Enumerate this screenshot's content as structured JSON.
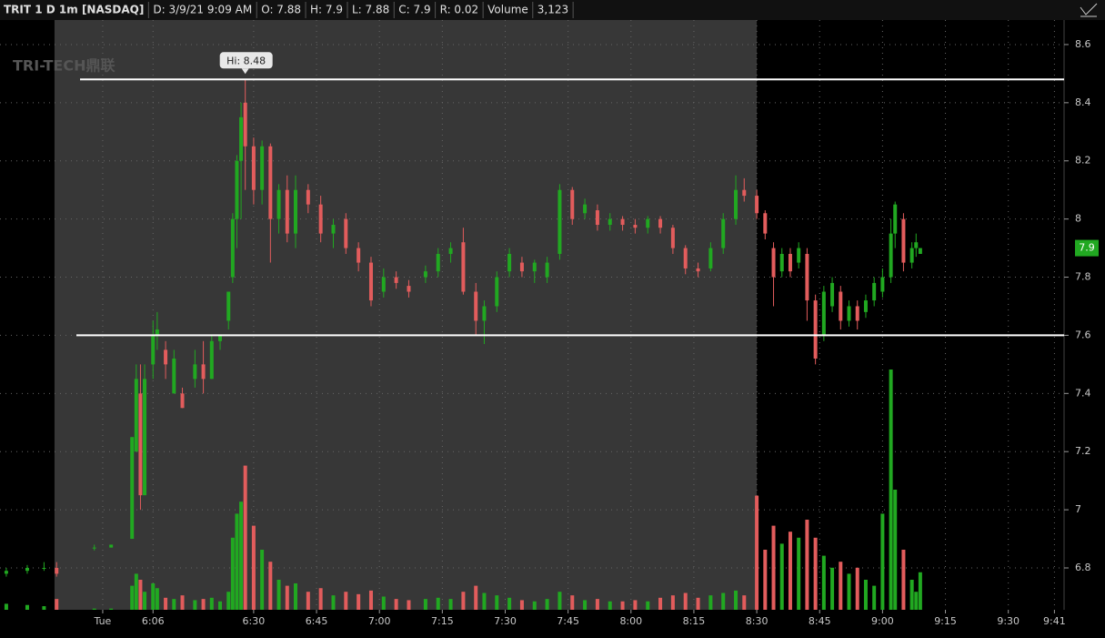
{
  "chart_data": {
    "type": "candlestick",
    "header": [
      "TRIT 1 D 1m [NASDAQ]",
      "D: 3/9/21 9:09 AM",
      "O: 7.88",
      "H: 7.9",
      "L: 7.88",
      "C: 7.9",
      "R: 0.02",
      "Volume",
      "3,123"
    ],
    "logo": "TRI-TECH鼎联",
    "hi_label": "Hi: 8.48",
    "last_price": 7.9,
    "levels": [
      8.48,
      7.6
    ],
    "up_color": "#21a821",
    "down_color": "#e25c5c",
    "level_color": "#ffffff",
    "xlim": [
      329.5,
      583.3
    ],
    "ylim": [
      6.656,
      8.675
    ],
    "volume_lim": [
      0,
      25000
    ],
    "shade": [
      342.5,
      510
    ],
    "grid": true,
    "xticks": [
      {
        "value": 354,
        "label": "Tue"
      },
      {
        "value": 366,
        "label": "6:06"
      },
      {
        "value": 390,
        "label": "6:30"
      },
      {
        "value": 405,
        "label": "6:45"
      },
      {
        "value": 420,
        "label": "7:00"
      },
      {
        "value": 435,
        "label": "7:15"
      },
      {
        "value": 450,
        "label": "7:30"
      },
      {
        "value": 465,
        "label": "7:45"
      },
      {
        "value": 480,
        "label": "8:00"
      },
      {
        "value": 495,
        "label": "8:15"
      },
      {
        "value": 510,
        "label": "8:30"
      },
      {
        "value": 525,
        "label": "8:45"
      },
      {
        "value": 540,
        "label": "9:00"
      },
      {
        "value": 555,
        "label": "9:15"
      },
      {
        "value": 570,
        "label": "9:30"
      },
      {
        "value": 581,
        "label": "9:41"
      }
    ],
    "yticks": [
      6.8,
      7,
      7.2,
      7.4,
      7.6,
      7.8,
      8,
      8.2,
      8.4,
      8.6
    ],
    "candles": [
      [
        331,
        6.78,
        6.8,
        6.77,
        6.79,
        500
      ],
      [
        336,
        6.79,
        6.81,
        6.78,
        6.8,
        400
      ],
      [
        340,
        6.8,
        6.82,
        6.79,
        6.8,
        300
      ],
      [
        343,
        6.8,
        6.82,
        6.77,
        6.78,
        900
      ],
      [
        352,
        6.87,
        6.88,
        6.86,
        6.87,
        100
      ],
      [
        356,
        6.87,
        6.88,
        6.87,
        6.88,
        100
      ],
      [
        361,
        6.9,
        7.25,
        6.9,
        7.25,
        2000
      ],
      [
        362,
        7.2,
        7.5,
        7.2,
        7.45,
        3000
      ],
      [
        363,
        7.4,
        7.5,
        7.0,
        7.05,
        2500
      ],
      [
        364,
        7.05,
        7.5,
        7.05,
        7.45,
        1500
      ],
      [
        366,
        7.5,
        7.65,
        7.45,
        7.6,
        2200
      ],
      [
        367,
        7.6,
        7.68,
        7.55,
        7.62,
        1800
      ],
      [
        369,
        7.55,
        7.58,
        7.45,
        7.5,
        1000
      ],
      [
        371,
        7.4,
        7.55,
        7.4,
        7.52,
        900
      ],
      [
        373,
        7.4,
        7.42,
        7.35,
        7.35,
        1200
      ],
      [
        376,
        7.45,
        7.55,
        7.42,
        7.5,
        800
      ],
      [
        378,
        7.5,
        7.58,
        7.4,
        7.45,
        900
      ],
      [
        380,
        7.45,
        7.6,
        7.45,
        7.58,
        1000
      ],
      [
        382,
        7.58,
        7.6,
        7.55,
        7.6,
        700
      ],
      [
        384,
        7.65,
        7.75,
        7.62,
        7.75,
        1500
      ],
      [
        385,
        7.8,
        8.02,
        7.78,
        8.0,
        6000
      ],
      [
        386,
        8.0,
        8.22,
        7.9,
        8.2,
        8000
      ],
      [
        387,
        8.2,
        8.4,
        8.0,
        8.35,
        9000
      ],
      [
        388,
        8.4,
        8.48,
        8.1,
        8.25,
        12000
      ],
      [
        390,
        8.25,
        8.28,
        8.05,
        8.1,
        7000
      ],
      [
        392,
        8.1,
        8.27,
        8.05,
        8.25,
        5000
      ],
      [
        394,
        8.25,
        8.26,
        7.85,
        8.0,
        4000
      ],
      [
        396,
        8.0,
        8.12,
        7.95,
        8.1,
        2500
      ],
      [
        398,
        8.1,
        8.15,
        7.92,
        7.95,
        2000
      ],
      [
        400,
        7.95,
        8.15,
        7.9,
        8.1,
        2200
      ],
      [
        403,
        8.1,
        8.12,
        8.02,
        8.05,
        1500
      ],
      [
        406,
        8.05,
        8.08,
        7.92,
        7.95,
        1800
      ],
      [
        409,
        7.95,
        8.0,
        7.9,
        7.98,
        1200
      ],
      [
        412,
        8.0,
        8.02,
        7.88,
        7.9,
        1500
      ],
      [
        415,
        7.9,
        7.92,
        7.82,
        7.85,
        1300
      ],
      [
        418,
        7.85,
        7.87,
        7.7,
        7.72,
        1600
      ],
      [
        421,
        7.75,
        7.83,
        7.73,
        7.8,
        1100
      ],
      [
        424,
        7.8,
        7.82,
        7.76,
        7.78,
        900
      ],
      [
        427,
        7.77,
        7.79,
        7.73,
        7.75,
        800
      ],
      [
        431,
        7.8,
        7.84,
        7.78,
        7.82,
        900
      ],
      [
        434,
        7.82,
        7.9,
        7.8,
        7.88,
        1000
      ],
      [
        437,
        7.88,
        7.92,
        7.85,
        7.9,
        900
      ],
      [
        440,
        7.92,
        7.97,
        7.74,
        7.75,
        1500
      ],
      [
        443,
        7.75,
        7.78,
        7.6,
        7.65,
        2000
      ],
      [
        445,
        7.65,
        7.72,
        7.57,
        7.7,
        1400
      ],
      [
        448,
        7.7,
        7.82,
        7.68,
        7.8,
        1200
      ],
      [
        451,
        7.82,
        7.9,
        7.8,
        7.88,
        1000
      ],
      [
        454,
        7.85,
        7.87,
        7.8,
        7.82,
        800
      ],
      [
        457,
        7.82,
        7.86,
        7.78,
        7.85,
        700
      ],
      [
        460,
        7.8,
        7.87,
        7.78,
        7.85,
        900
      ],
      [
        463,
        7.88,
        8.12,
        7.86,
        8.1,
        1500
      ],
      [
        466,
        8.1,
        8.11,
        7.98,
        8.0,
        1200
      ],
      [
        469,
        8.02,
        8.07,
        8.0,
        8.05,
        800
      ],
      [
        472,
        8.03,
        8.05,
        7.96,
        7.98,
        900
      ],
      [
        475,
        7.98,
        8.02,
        7.96,
        8.0,
        700
      ],
      [
        478,
        8.0,
        8.01,
        7.96,
        7.98,
        700
      ],
      [
        481,
        7.98,
        8.0,
        7.95,
        7.97,
        800
      ],
      [
        484,
        7.97,
        8.01,
        7.95,
        8.0,
        700
      ],
      [
        487,
        8.0,
        8.01,
        7.95,
        7.97,
        1000
      ],
      [
        490,
        7.97,
        7.98,
        7.88,
        7.9,
        1200
      ],
      [
        493,
        7.9,
        7.91,
        7.81,
        7.83,
        1400
      ],
      [
        496,
        7.83,
        7.85,
        7.8,
        7.82,
        1000
      ],
      [
        499,
        7.83,
        7.92,
        7.82,
        7.9,
        1200
      ],
      [
        502,
        7.9,
        8.02,
        7.88,
        8.0,
        1400
      ],
      [
        505,
        8.0,
        8.15,
        7.98,
        8.1,
        1600
      ],
      [
        507,
        8.1,
        8.14,
        8.06,
        8.08,
        1200
      ],
      [
        510,
        8.08,
        8.1,
        8.0,
        8.02,
        9500
      ],
      [
        512,
        8.02,
        8.03,
        7.93,
        7.95,
        5000
      ],
      [
        514,
        7.9,
        7.92,
        7.7,
        7.8,
        7000
      ],
      [
        516,
        7.82,
        7.9,
        7.8,
        7.88,
        5500
      ],
      [
        518,
        7.88,
        7.9,
        7.8,
        7.82,
        6500
      ],
      [
        520,
        7.85,
        7.92,
        7.83,
        7.9,
        6000
      ],
      [
        522,
        7.88,
        7.9,
        7.65,
        7.72,
        7500
      ],
      [
        524,
        7.72,
        7.74,
        7.5,
        7.52,
        6000
      ],
      [
        526,
        7.6,
        7.77,
        7.58,
        7.75,
        4500
      ],
      [
        528,
        7.7,
        7.8,
        7.68,
        7.78,
        3500
      ],
      [
        530,
        7.75,
        7.77,
        7.62,
        7.65,
        4000
      ],
      [
        532,
        7.65,
        7.72,
        7.63,
        7.7,
        3000
      ],
      [
        534,
        7.7,
        7.72,
        7.62,
        7.65,
        3500
      ],
      [
        536,
        7.68,
        7.74,
        7.66,
        7.72,
        2500
      ],
      [
        538,
        7.72,
        7.8,
        7.7,
        7.78,
        2000
      ],
      [
        540,
        7.75,
        7.83,
        7.73,
        7.8,
        8000
      ],
      [
        542,
        7.8,
        8.0,
        7.78,
        7.95,
        20000
      ],
      [
        543,
        7.95,
        8.06,
        7.9,
        8.05,
        10000
      ],
      [
        545,
        8.0,
        8.02,
        7.82,
        7.85,
        5000
      ],
      [
        547,
        7.85,
        7.92,
        7.83,
        7.9,
        2500
      ],
      [
        548,
        7.9,
        7.95,
        7.87,
        7.92,
        1500
      ],
      [
        549,
        7.88,
        7.9,
        7.88,
        7.9,
        3123
      ]
    ]
  }
}
